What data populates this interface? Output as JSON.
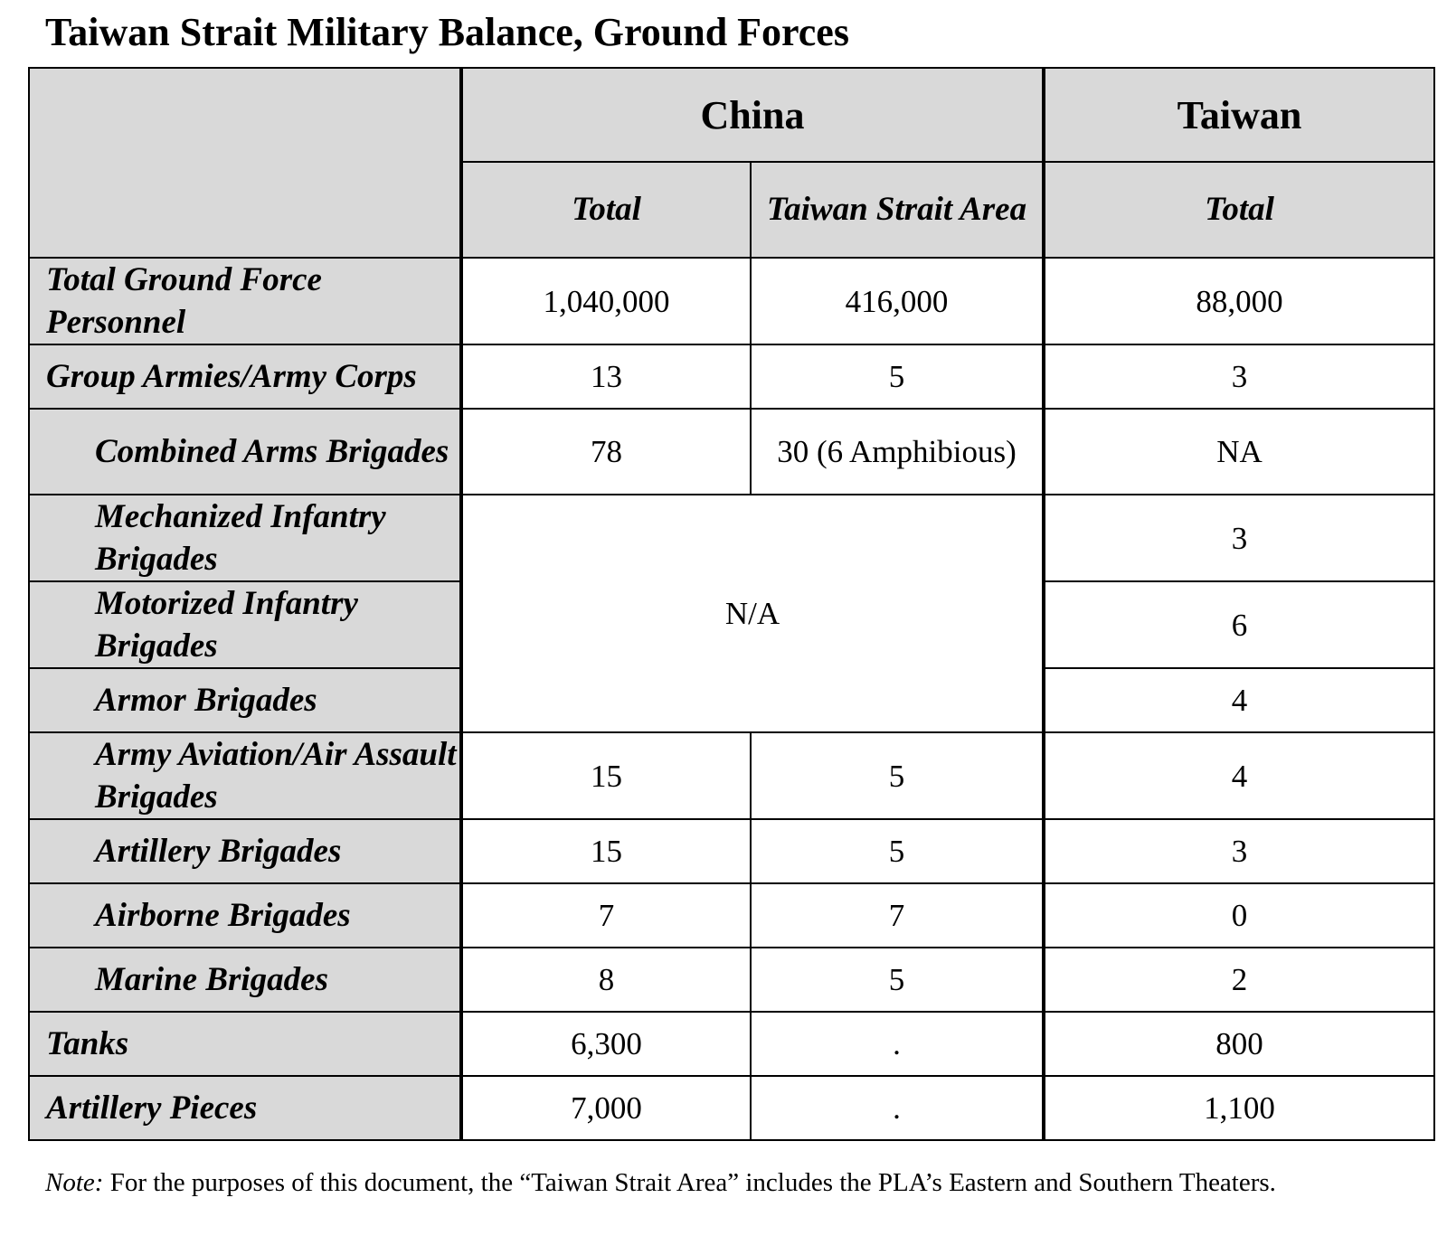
{
  "title": "Taiwan Strait Military Balance, Ground Forces",
  "table": {
    "group_headers": {
      "china": "China",
      "taiwan": "Taiwan"
    },
    "sub_headers": {
      "china_total": "Total",
      "china_strait": "Taiwan Strait Area",
      "taiwan_total": "Total"
    },
    "rows": [
      {
        "label": "Total Ground Force Personnel",
        "china_total": "1,040,000",
        "china_strait": "416,000",
        "taiwan_total": "88,000"
      },
      {
        "label": "Group Armies/Army Corps",
        "china_total": "13",
        "china_strait": "5",
        "taiwan_total": "3"
      },
      {
        "label": "Combined Arms Brigades",
        "china_total": "78",
        "china_strait": "30 (6 Amphibious)",
        "taiwan_total": "NA"
      },
      {
        "label": "Mechanized Infantry Brigades",
        "taiwan_total": "3"
      },
      {
        "label": "Motorized Infantry Brigades",
        "taiwan_total": "6"
      },
      {
        "label": "Armor Brigades",
        "taiwan_total": "4"
      },
      {
        "label": "Army Aviation/Air Assault Brigades",
        "china_total": "15",
        "china_strait": "5",
        "taiwan_total": "4"
      },
      {
        "label": "Artillery Brigades",
        "china_total": "15",
        "china_strait": "5",
        "taiwan_total": "3"
      },
      {
        "label": "Airborne Brigades",
        "china_total": "7",
        "china_strait": "7",
        "taiwan_total": "0"
      },
      {
        "label": "Marine Brigades",
        "china_total": "8",
        "china_strait": "5",
        "taiwan_total": "2"
      },
      {
        "label": "Tanks",
        "china_total": "6,300",
        "china_strait": ".",
        "taiwan_total": "800"
      },
      {
        "label": "Artillery Pieces",
        "china_total": "7,000",
        "china_strait": ".",
        "taiwan_total": "1,100"
      }
    ],
    "china_na_merged": "N/A"
  },
  "note": {
    "prefix": "Note:",
    "text": " For the purposes of this document, the “Taiwan Strait Area” includes the PLA’s Eastern and Southern Theaters."
  }
}
